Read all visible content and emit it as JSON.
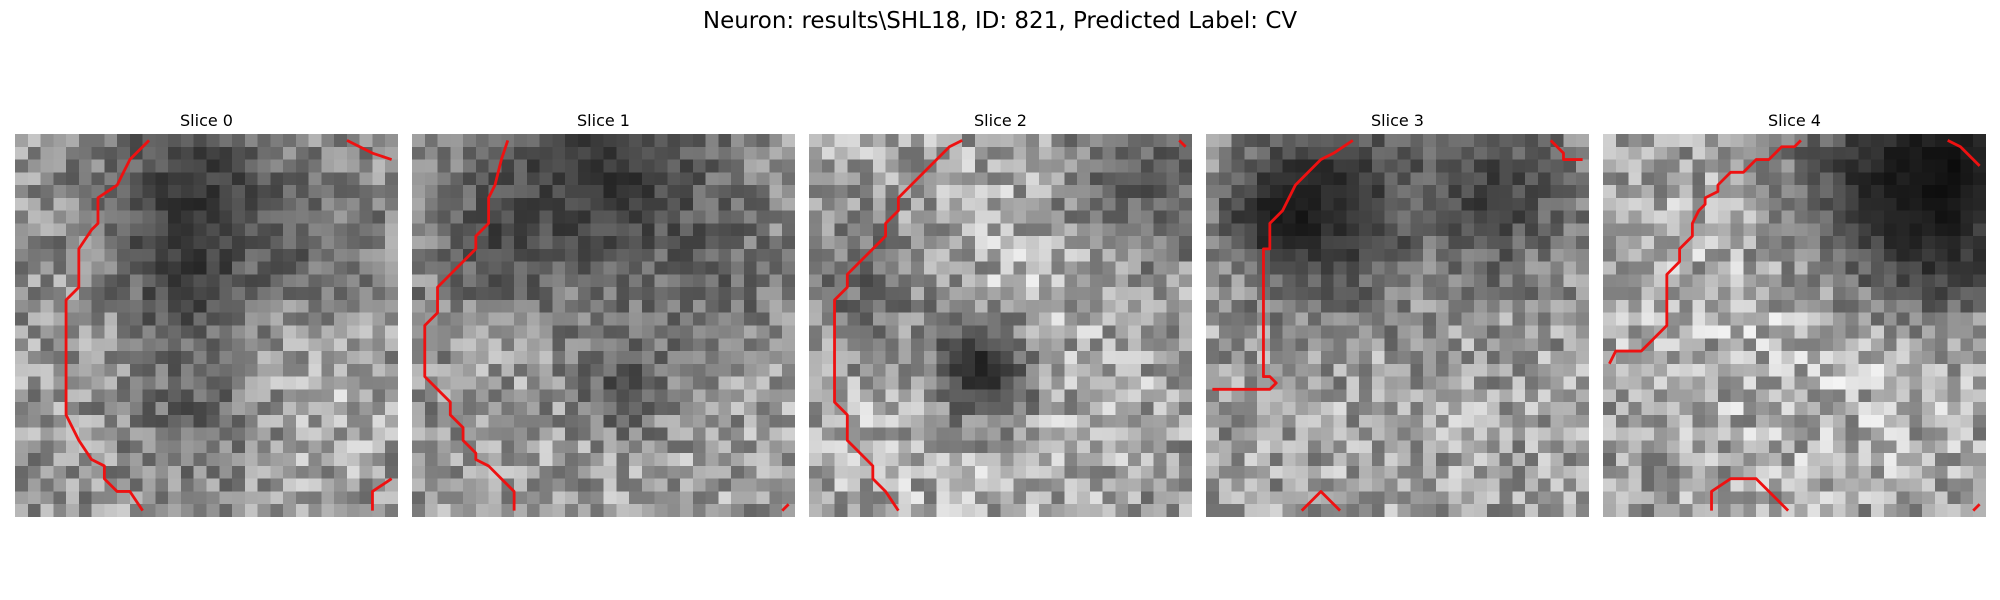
{
  "figure": {
    "title": "Neuron: results\\SHL18, ID: 821, Predicted Label: CV"
  },
  "contour_color": "#ee1111",
  "grid_size": 30,
  "slices": [
    {
      "title": "Slice 0",
      "dark_spots": [
        [
          14,
          5,
          0.35,
          6
        ],
        [
          13,
          12,
          0.55,
          3
        ],
        [
          14,
          21,
          0.6,
          4
        ],
        [
          25,
          10,
          0.7,
          4
        ]
      ],
      "bright_spots": [
        [
          18,
          12,
          1.15,
          10
        ],
        [
          22,
          20,
          1.1,
          6
        ]
      ],
      "contours": [
        [
          [
            10.5,
            0.5
          ],
          [
            9,
            2
          ],
          [
            8.5,
            3
          ],
          [
            8,
            4
          ],
          [
            6.5,
            5
          ],
          [
            6.5,
            7
          ],
          [
            6,
            7.5
          ],
          [
            5,
            9
          ],
          [
            5,
            12
          ],
          [
            4,
            13
          ],
          [
            4,
            22
          ],
          [
            5,
            24
          ],
          [
            6,
            25.5
          ],
          [
            7,
            26
          ],
          [
            7,
            27
          ],
          [
            8,
            28
          ],
          [
            9,
            28
          ],
          [
            10,
            29.5
          ]
        ],
        [
          [
            26,
            0.5
          ],
          [
            27,
            1
          ],
          [
            28,
            1.5
          ],
          [
            29.5,
            2
          ]
        ],
        [
          [
            28,
            29.5
          ],
          [
            28,
            28
          ],
          [
            29.5,
            27
          ]
        ]
      ]
    },
    {
      "title": "Slice 1",
      "dark_spots": [
        [
          15,
          2,
          0.35,
          7
        ],
        [
          16,
          19,
          0.55,
          3
        ],
        [
          6,
          8,
          0.6,
          4
        ],
        [
          24,
          12,
          0.7,
          5
        ]
      ],
      "bright_spots": [
        [
          20,
          13,
          1.15,
          11
        ]
      ],
      "contours": [
        [
          [
            7.5,
            0.5
          ],
          [
            7,
            2
          ],
          [
            6.5,
            4
          ],
          [
            6,
            5
          ],
          [
            6,
            7
          ],
          [
            5,
            8
          ],
          [
            5,
            9
          ],
          [
            4,
            10
          ],
          [
            3,
            11
          ],
          [
            2,
            12
          ],
          [
            2,
            14
          ],
          [
            1,
            15
          ],
          [
            1,
            19
          ],
          [
            2,
            20
          ],
          [
            3,
            21
          ],
          [
            3,
            22
          ],
          [
            4,
            23
          ],
          [
            4,
            24
          ],
          [
            5,
            25
          ],
          [
            5,
            25.5
          ],
          [
            6,
            26
          ],
          [
            7,
            27
          ],
          [
            8,
            28
          ],
          [
            8,
            29.5
          ]
        ],
        [
          [
            29,
            29.5
          ],
          [
            29.5,
            29
          ]
        ]
      ]
    },
    {
      "title": "Slice 2",
      "dark_spots": [
        [
          13,
          18,
          0.2,
          3
        ],
        [
          26,
          3,
          0.55,
          5
        ],
        [
          4,
          11,
          0.6,
          4
        ]
      ],
      "bright_spots": [
        [
          15,
          10,
          1.2,
          13
        ],
        [
          10,
          22,
          1.1,
          8
        ]
      ],
      "contours": [
        [
          [
            12,
            0.5
          ],
          [
            11,
            1
          ],
          [
            10,
            2
          ],
          [
            9,
            3
          ],
          [
            8,
            4
          ],
          [
            7,
            5
          ],
          [
            7,
            6
          ],
          [
            6,
            7
          ],
          [
            6,
            8
          ],
          [
            5,
            9
          ],
          [
            4,
            10
          ],
          [
            3,
            11
          ],
          [
            3,
            12
          ],
          [
            2,
            13
          ],
          [
            2,
            21
          ],
          [
            3,
            22
          ],
          [
            3,
            24
          ],
          [
            4,
            25
          ],
          [
            5,
            26
          ],
          [
            5,
            27
          ],
          [
            6,
            28
          ],
          [
            7,
            29.5
          ]
        ],
        [
          [
            29,
            0.5
          ],
          [
            29.5,
            1
          ]
        ]
      ]
    },
    {
      "title": "Slice 3",
      "dark_spots": [
        [
          5,
          6,
          0.3,
          3
        ],
        [
          9,
          3,
          0.4,
          4
        ],
        [
          22,
          4,
          0.45,
          5
        ],
        [
          10,
          9,
          0.55,
          4
        ]
      ],
      "bright_spots": [
        [
          15,
          20,
          1.1,
          12
        ]
      ],
      "contours": [
        [
          [
            11.5,
            0.5
          ],
          [
            10,
            1.5
          ],
          [
            9,
            2
          ],
          [
            8,
            3
          ],
          [
            7,
            4
          ],
          [
            6.5,
            5
          ],
          [
            6,
            6
          ],
          [
            5,
            7
          ],
          [
            5,
            9
          ],
          [
            4.5,
            9
          ],
          [
            4.5,
            19
          ],
          [
            5,
            19
          ],
          [
            5.5,
            19.5
          ],
          [
            5,
            20
          ],
          [
            0.5,
            20
          ]
        ],
        [
          [
            27,
            0.5
          ],
          [
            28,
            1.5
          ],
          [
            28,
            2
          ],
          [
            29.5,
            2
          ]
        ],
        [
          [
            7.5,
            29.5
          ],
          [
            9,
            28
          ],
          [
            10.5,
            29.5
          ]
        ]
      ]
    },
    {
      "title": "Slice 4",
      "dark_spots": [
        [
          22,
          3,
          0.3,
          6
        ],
        [
          27,
          2,
          0.25,
          4
        ],
        [
          26,
          9,
          0.45,
          4
        ]
      ],
      "bright_spots": [
        [
          12,
          13,
          1.2,
          12
        ],
        [
          25,
          18,
          1.1,
          8
        ]
      ],
      "contours": [
        [
          [
            15.5,
            0.5
          ],
          [
            15,
            1
          ],
          [
            14,
            1
          ],
          [
            13,
            2
          ],
          [
            12,
            2
          ],
          [
            11,
            3
          ],
          [
            10,
            3
          ],
          [
            9,
            4
          ],
          [
            9,
            4.5
          ],
          [
            8,
            5
          ],
          [
            8,
            5.5
          ],
          [
            7.5,
            6
          ],
          [
            7,
            7
          ],
          [
            7,
            8
          ],
          [
            6,
            9
          ],
          [
            6,
            10
          ],
          [
            5,
            11
          ],
          [
            5,
            15
          ],
          [
            4,
            16
          ],
          [
            3,
            17
          ],
          [
            2,
            17
          ],
          [
            1,
            17
          ],
          [
            0.5,
            18
          ]
        ],
        [
          [
            27,
            0.5
          ],
          [
            28,
            1
          ],
          [
            29,
            2
          ],
          [
            29.5,
            2.5
          ]
        ],
        [
          [
            8.5,
            29.5
          ],
          [
            8.5,
            28
          ],
          [
            10,
            27
          ],
          [
            12,
            27
          ],
          [
            13,
            28
          ],
          [
            14.5,
            29.5
          ]
        ],
        [
          [
            29,
            29.5
          ],
          [
            29.5,
            29
          ]
        ]
      ]
    }
  ]
}
